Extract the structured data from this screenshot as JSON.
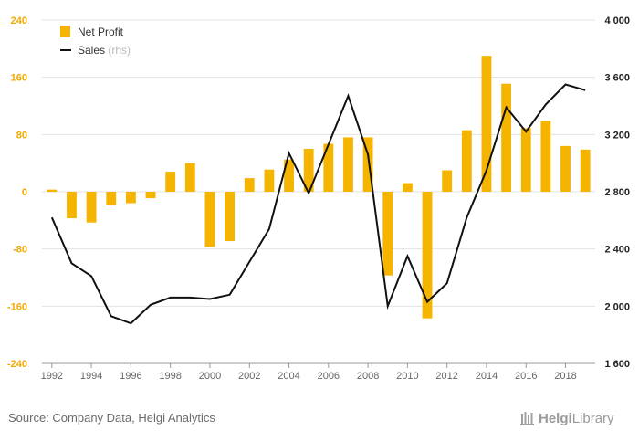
{
  "chart_data": {
    "type": "bar+line",
    "x": [
      1992,
      1993,
      1994,
      1995,
      1996,
      1997,
      1998,
      1999,
      2000,
      2001,
      2002,
      2003,
      2004,
      2005,
      2006,
      2007,
      2008,
      2009,
      2010,
      2011,
      2012,
      2013,
      2014,
      2015,
      2016,
      2017,
      2018,
      2019
    ],
    "x_tick_labels": [
      "1992",
      "1994",
      "1996",
      "1998",
      "2000",
      "2002",
      "2004",
      "2006",
      "2008",
      "2010",
      "2012",
      "2014",
      "2016",
      "2018"
    ],
    "series": [
      {
        "name": "Net Profit",
        "type": "bar",
        "axis": "left",
        "color": "#f5b400",
        "values": [
          3,
          -37,
          -43,
          -19,
          -16,
          -9,
          28,
          40,
          -77,
          -69,
          19,
          31,
          45,
          60,
          67,
          76,
          76,
          -117,
          12,
          -177,
          30,
          86,
          190,
          151,
          89,
          99,
          64,
          59
        ]
      },
      {
        "name": "Sales",
        "name_suffix": "(rhs)",
        "type": "line",
        "axis": "right",
        "color": "#111111",
        "values": [
          2620,
          2300,
          2210,
          1930,
          1880,
          2010,
          2060,
          2060,
          2050,
          2080,
          2310,
          2540,
          3070,
          2790,
          3130,
          3470,
          3060,
          2000,
          2350,
          2030,
          2160,
          2620,
          2950,
          3390,
          3220,
          3410,
          3550,
          3510
        ]
      }
    ],
    "left_axis": {
      "ylim": [
        -240,
        240
      ],
      "ticks": [
        "240",
        "160",
        "80",
        "0",
        "-80",
        "-160",
        "-240"
      ]
    },
    "right_axis": {
      "ylim": [
        1600,
        4000
      ],
      "ticks": [
        "4 000",
        "3 600",
        "3 200",
        "2 800",
        "2 400",
        "2 000",
        "1 600"
      ]
    },
    "legend": {
      "position": "top-left",
      "entries": [
        "Net Profit",
        "Sales"
      ],
      "sales_suffix": "(rhs)"
    },
    "grid": "horizontal"
  },
  "footer": {
    "source": "Source: Company Data, Helgi Analytics",
    "logo_part1": "Helgi",
    "logo_part2": "Library"
  }
}
